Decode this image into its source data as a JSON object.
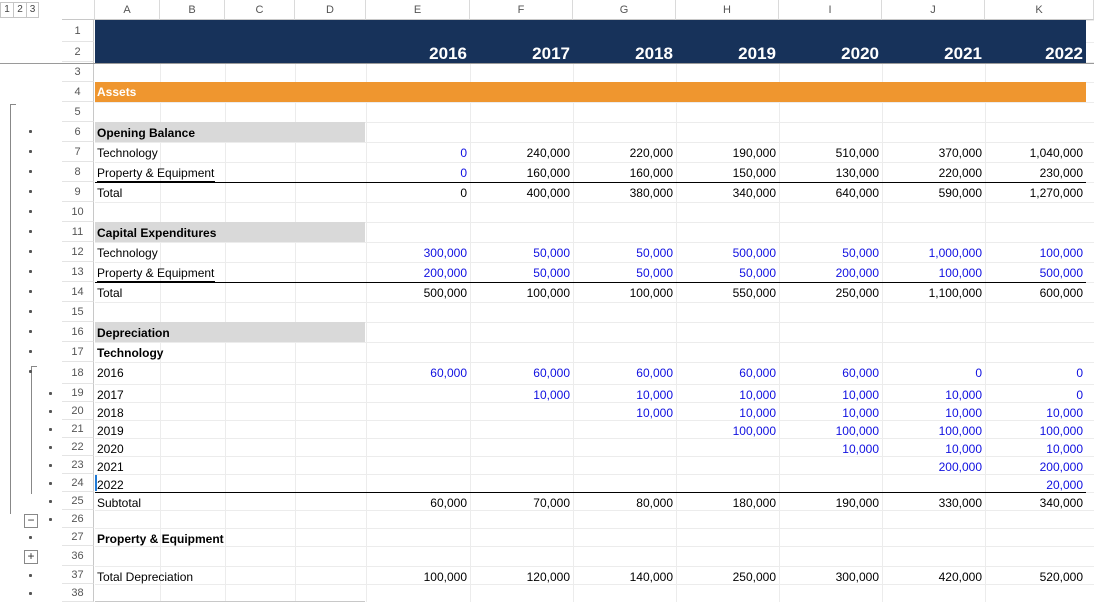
{
  "outline_levels": [
    "1",
    "2",
    "3"
  ],
  "columns": [
    "A",
    "B",
    "C",
    "D",
    "E",
    "F",
    "G",
    "H",
    "I",
    "J",
    "K"
  ],
  "row_numbers": [
    "1",
    "2",
    "3",
    "4",
    "5",
    "6",
    "7",
    "8",
    "9",
    "10",
    "11",
    "12",
    "13",
    "14",
    "15",
    "16",
    "17",
    "18",
    "19",
    "20",
    "21",
    "22",
    "23",
    "24",
    "25",
    "26",
    "27",
    "36",
    "37",
    "38"
  ],
  "years": [
    "2016",
    "2017",
    "2018",
    "2019",
    "2020",
    "2021",
    "2022"
  ],
  "assets_label": "Assets",
  "opening_balance": {
    "title": "Opening Balance",
    "rows": [
      {
        "label": "Technology",
        "values": [
          "0",
          "240,000",
          "220,000",
          "190,000",
          "510,000",
          "370,000",
          "1,040,000"
        ]
      },
      {
        "label": "Property & Equipment",
        "values": [
          "0",
          "160,000",
          "160,000",
          "150,000",
          "130,000",
          "220,000",
          "230,000"
        ]
      }
    ],
    "total": {
      "label": "Total",
      "values": [
        "0",
        "400,000",
        "380,000",
        "340,000",
        "640,000",
        "590,000",
        "1,270,000"
      ]
    }
  },
  "capex": {
    "title": "Capital Expenditures",
    "rows": [
      {
        "label": "Technology",
        "values": [
          "300,000",
          "50,000",
          "50,000",
          "500,000",
          "50,000",
          "1,000,000",
          "100,000"
        ]
      },
      {
        "label": "Property & Equipment",
        "values": [
          "200,000",
          "50,000",
          "50,000",
          "50,000",
          "200,000",
          "100,000",
          "500,000"
        ]
      }
    ],
    "total": {
      "label": "Total",
      "values": [
        "500,000",
        "100,000",
        "100,000",
        "550,000",
        "250,000",
        "1,100,000",
        "600,000"
      ]
    }
  },
  "depreciation": {
    "title": "Depreciation",
    "sub_title": "Technology",
    "rows": [
      {
        "label": "2016",
        "values": [
          "60,000",
          "60,000",
          "60,000",
          "60,000",
          "60,000",
          "0",
          "0"
        ]
      },
      {
        "label": "2017",
        "values": [
          "",
          "10,000",
          "10,000",
          "10,000",
          "10,000",
          "10,000",
          "0"
        ]
      },
      {
        "label": "2018",
        "values": [
          "",
          "",
          "10,000",
          "10,000",
          "10,000",
          "10,000",
          "10,000"
        ]
      },
      {
        "label": "2019",
        "values": [
          "",
          "",
          "",
          "100,000",
          "100,000",
          "100,000",
          "100,000"
        ]
      },
      {
        "label": "2020",
        "values": [
          "",
          "",
          "",
          "",
          "10,000",
          "10,000",
          "10,000"
        ]
      },
      {
        "label": "2021",
        "values": [
          "",
          "",
          "",
          "",
          "",
          "200,000",
          "200,000"
        ]
      },
      {
        "label": "2022",
        "values": [
          "",
          "",
          "",
          "",
          "",
          "",
          "20,000"
        ]
      }
    ],
    "subtotal": {
      "label": "Subtotal",
      "values": [
        "60,000",
        "70,000",
        "80,000",
        "180,000",
        "190,000",
        "330,000",
        "340,000"
      ]
    },
    "pe_title": "Property & Equipment",
    "total": {
      "label": "Total Depreciation",
      "values": [
        "100,000",
        "120,000",
        "140,000",
        "250,000",
        "300,000",
        "420,000",
        "520,000"
      ]
    }
  },
  "outline_buttons": {
    "collapse": "−",
    "expand": "+"
  },
  "colors": {
    "header_navy": "#17325a",
    "assets_orange": "#ef962f",
    "input_blue": "#1010e0",
    "section_gray": "#d9d9d9"
  }
}
